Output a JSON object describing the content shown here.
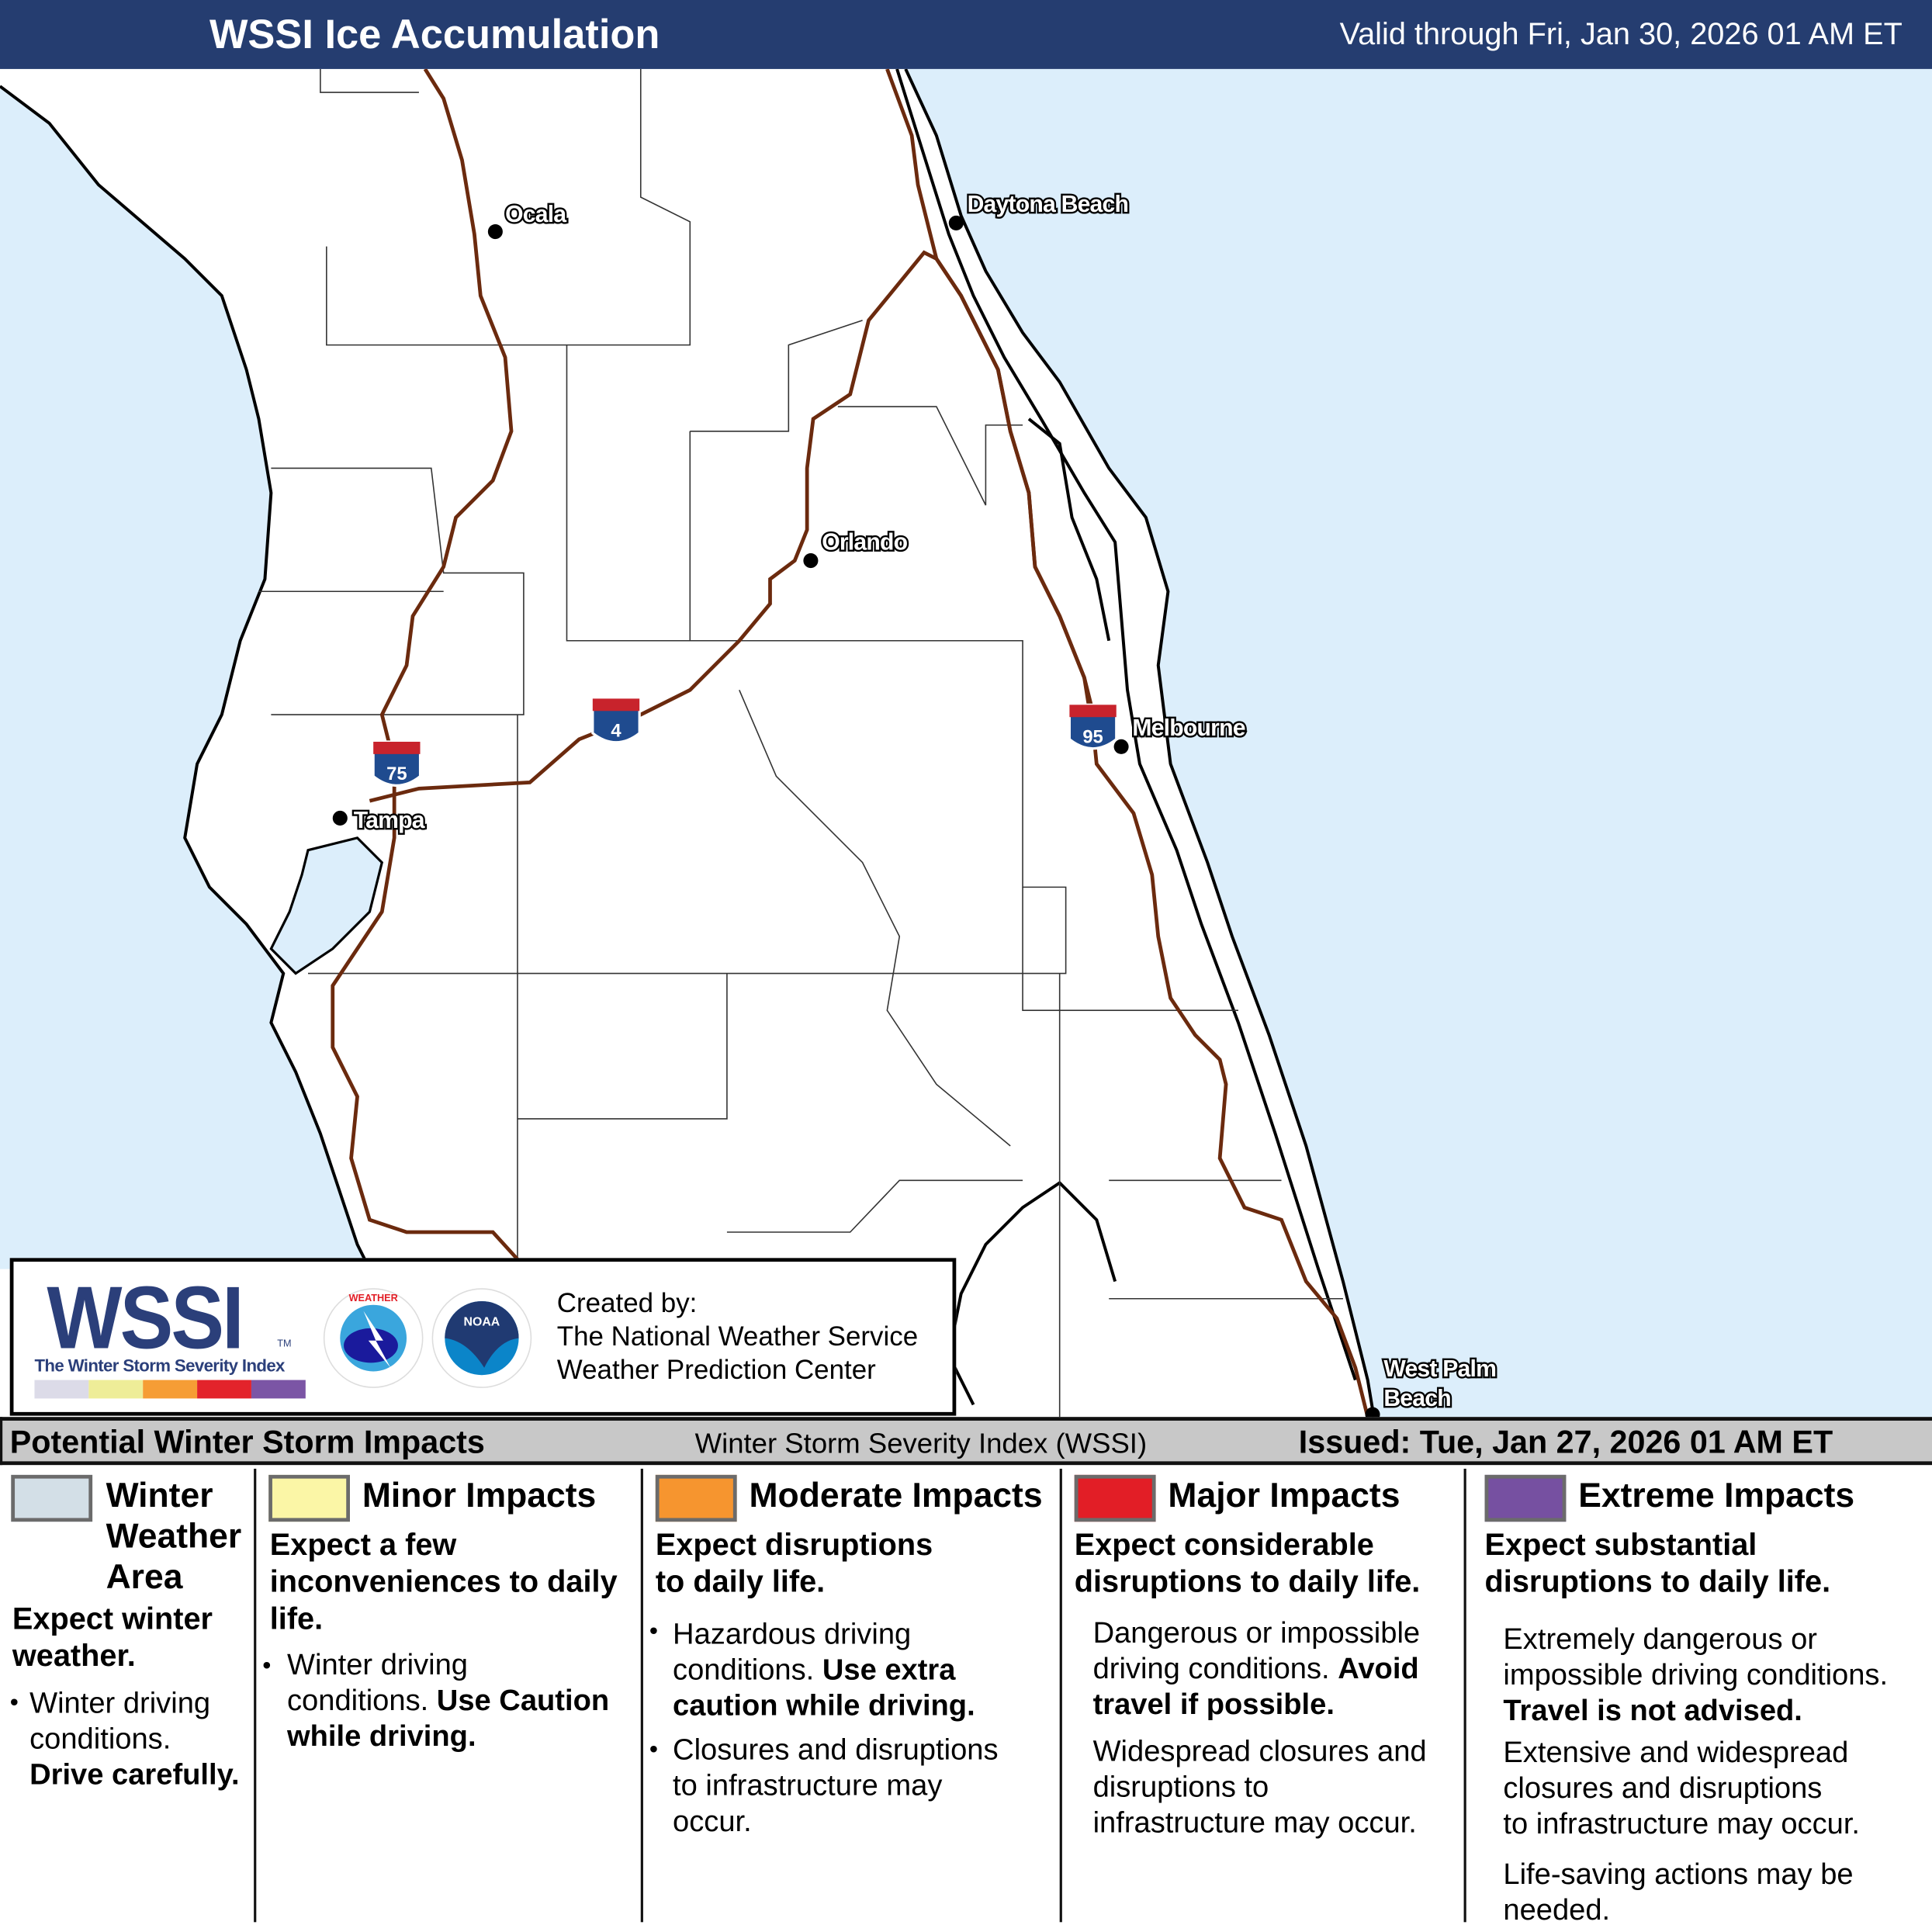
{
  "header": {
    "title": "WSSI Ice Accumulation",
    "valid": "Valid through Fri, Jan 30, 2026 01 AM ET"
  },
  "map": {
    "ocean_color": "#dceefb",
    "highway_color": "#6b2a0e",
    "cities": [
      {
        "name": "Ocala"
      },
      {
        "name": "Daytona Beach"
      },
      {
        "name": "Orlando"
      },
      {
        "name": "Melbourne"
      },
      {
        "name": "Tampa"
      },
      {
        "name": "West Palm",
        "name2": "Beach"
      }
    ],
    "shields": [
      {
        "label": "75"
      },
      {
        "label": "4"
      },
      {
        "label": "95"
      }
    ]
  },
  "logo": {
    "wssi": "WSSI",
    "tm": "TM",
    "subtitle": "The Winter Storm Severity Index",
    "swatch_colors": [
      "#dcdbe8",
      "#eeed98",
      "#f69d35",
      "#e3232b",
      "#7b55a5"
    ],
    "nws": "NATIONAL WEATHER SERVICE",
    "noaa": "NOAA",
    "created_by": "Created by:",
    "org1": "The National Weather Service",
    "org2": "Weather Prediction Center"
  },
  "bar": {
    "left": "Potential Winter Storm Impacts",
    "middle": "Winter Storm Severity Index (WSSI)",
    "right": "Issued: Tue, Jan 27, 2026 01 AM ET"
  },
  "legend": [
    {
      "color": "#d3dfe7",
      "title": "Winter Weather Area",
      "title_lines": [
        "Winter",
        "Weather",
        "Area"
      ],
      "lead_lines": [
        "Expect winter",
        "weather."
      ],
      "text": [
        "Winter driving",
        "conditions.",
        "Drive carefully."
      ]
    },
    {
      "color": "#fbf6a6",
      "title": "Minor Impacts",
      "lead_lines": [
        "Expect a few",
        "inconveniences to daily",
        "life."
      ],
      "text": [
        "Winter driving",
        "conditions. ",
        "Use Caution",
        "while driving."
      ]
    },
    {
      "color": "#f6952f",
      "title": "Moderate Impacts",
      "lead_lines": [
        "Expect disruptions",
        "to daily life."
      ],
      "text": [
        "Hazardous driving",
        "conditions. ",
        "Use extra",
        "caution while driving.",
        "Closures and disruptions",
        "to infrastructure may",
        "occur."
      ]
    },
    {
      "color": "#e21e26",
      "title": "Major Impacts",
      "lead_lines": [
        "Expect considerable",
        "disruptions to daily life."
      ],
      "text": [
        "Dangerous or impossible",
        "driving conditions. ",
        "Avoid",
        "travel if possible.",
        "Widespread closures and",
        "disruptions to",
        "infrastructure may occur."
      ]
    },
    {
      "color": "#7650a1",
      "title": "Extreme Impacts",
      "lead_lines": [
        "Expect substantial",
        "disruptions to daily life."
      ],
      "text": [
        "Extremely dangerous or",
        "impossible driving conditions.",
        "Travel is not advised.",
        "Extensive and widespread",
        "closures and disruptions",
        "to infrastructure may occur.",
        "Life-saving actions may be",
        "needed."
      ]
    }
  ]
}
